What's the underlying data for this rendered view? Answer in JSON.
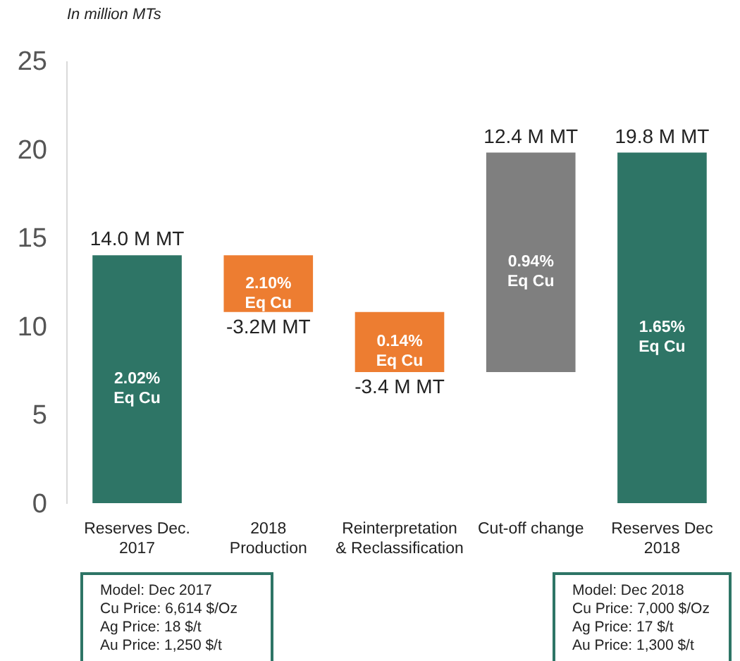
{
  "chart_data": {
    "type": "bar",
    "ylabel": "In million MTs",
    "categories": [
      "Reserves Dec.\n2017",
      "2018\nProduction",
      "Reinterpretation\n& Reclassification",
      "Cut-off change",
      "Reserves Dec\n2018"
    ],
    "values": [
      14.0,
      -3.2,
      -3.4,
      12.4,
      19.8
    ],
    "base": [
      0,
      14.0,
      10.8,
      7.4,
      0
    ],
    "colors": [
      "#2e7566",
      "#ed7d31",
      "#ed7d31",
      "#7f7f7f",
      "#2e7566"
    ],
    "value_labels": [
      "14.0 M MT",
      "-3.2M MT",
      "-3.4 M MT",
      "12.4 M MT",
      "19.8 M MT"
    ],
    "ylim": [
      0,
      25
    ],
    "yticks": [
      0,
      5,
      10,
      15,
      20,
      25
    ],
    "grid": false,
    "annotations": [
      "2.02%\nEq Cu",
      "2.10%\nEq Cu",
      "0.14%\nEq Cu",
      "0.94%\nEq Cu",
      "1.65%\nEq Cu",
      "Model: Dec 2017\nCu Price: 6,614 $/Oz\nAg Price: 18 $/t\nAu Price: 1,250 $/t",
      "Model: Dec 2018\nCu Price: 7,000 $/Oz\nAg Price: 17 $/t\nAu Price: 1,300 $/t"
    ]
  }
}
